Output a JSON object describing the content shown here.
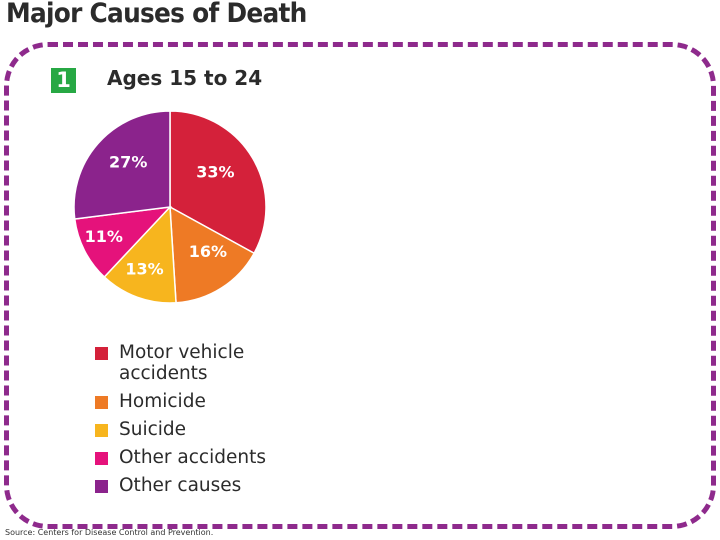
{
  "page": {
    "title": "Major Causes of Death"
  },
  "panel": {
    "number": "1",
    "heading": "Ages 15 to 24"
  },
  "source": "Source: Centers for Disease Control and Prevention.",
  "chart_data": {
    "type": "pie",
    "title": "Ages 15 to 24",
    "categories": [
      "Motor vehicle accidents",
      "Homicide",
      "Suicide",
      "Other accidents",
      "Other causes"
    ],
    "legend_labels": [
      "Motor vehicle\naccidents",
      "Homicide",
      "Suicide",
      "Other accidents",
      "Other causes"
    ],
    "values": [
      33,
      16,
      13,
      11,
      27
    ],
    "labels": [
      "33%",
      "16%",
      "13%",
      "11%",
      "27%"
    ],
    "colors": [
      "#d4213a",
      "#ee7a25",
      "#f7b51e",
      "#e5127b",
      "#8b238c"
    ],
    "label_colors": [
      "#ffffff",
      "#ffffff",
      "#ffffff",
      "#ffffff",
      "#ffffff"
    ],
    "legend_position": "bottom"
  }
}
